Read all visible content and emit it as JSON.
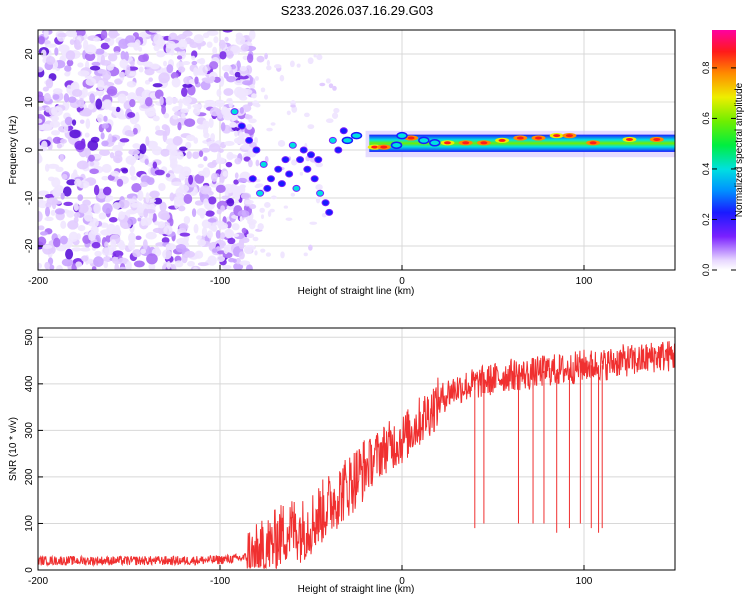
{
  "title": "S233.2026.037.16.29.G03",
  "colors": {
    "snr_line": "#f03030",
    "frame": "#000000",
    "grid": "#d8d8d8",
    "noise_purple": "#6a22e6"
  },
  "chart_data": [
    {
      "type": "heatmap",
      "name": "spectrogram",
      "title": "S233.2026.037.16.29.G03",
      "xlabel": "Height of straight line (km)",
      "ylabel": "Frequency (Hz)",
      "xlim": [
        -200,
        150
      ],
      "ylim": [
        -25,
        25
      ],
      "xticks": [
        -200,
        -100,
        0,
        100
      ],
      "yticks": [
        -20,
        -10,
        0,
        10,
        20
      ],
      "colorbar": {
        "label": "Normalized spectral amplitude",
        "range": [
          0,
          0.95
        ],
        "ticks": [
          0.0,
          0.2,
          0.4,
          0.6,
          0.8
        ],
        "colormap": "rainbow (white-purple-blue-cyan-green-yellow-red-magenta)"
      },
      "features": [
        {
          "name": "noise region",
          "x_range": [
            -200,
            -90
          ],
          "freq_range": [
            -25,
            25
          ],
          "amplitude": 0.05
        },
        {
          "name": "main signal",
          "x_range": [
            -20,
            150
          ],
          "center_freq_hz": 1.5,
          "amplitude": 0.6
        },
        {
          "name": "fading branch",
          "x_range": [
            -95,
            -40
          ],
          "freq_range": [
            -14,
            8
          ],
          "amplitude": 0.3
        }
      ]
    },
    {
      "type": "line",
      "name": "snr",
      "xlabel": "Height of straight line (km)",
      "ylabel": "SNR (10 * v/v)",
      "xlim": [
        -200,
        150
      ],
      "ylim": [
        0,
        520
      ],
      "xticks": [
        -200,
        -100,
        0,
        100
      ],
      "yticks": [
        0,
        100,
        200,
        300,
        400,
        500
      ],
      "series": [
        {
          "name": "SNR",
          "x": [
            -200,
            -180,
            -160,
            -140,
            -120,
            -100,
            -90,
            -80,
            -75,
            -70,
            -65,
            -60,
            -55,
            -50,
            -45,
            -40,
            -35,
            -30,
            -25,
            -20,
            -15,
            -10,
            -5,
            0,
            5,
            10,
            15,
            20,
            25,
            30,
            40,
            50,
            60,
            70,
            80,
            90,
            100,
            110,
            120,
            130,
            140,
            150
          ],
          "y": [
            20,
            20,
            20,
            20,
            20,
            22,
            25,
            30,
            45,
            60,
            80,
            90,
            85,
            100,
            120,
            140,
            160,
            180,
            200,
            220,
            240,
            260,
            270,
            280,
            300,
            320,
            340,
            360,
            380,
            390,
            400,
            410,
            420,
            420,
            430,
            430,
            440,
            440,
            450,
            450,
            460,
            460
          ]
        }
      ],
      "dropouts": [
        {
          "x": 40,
          "y": 90
        },
        {
          "x": 45,
          "y": 100
        },
        {
          "x": 64,
          "y": 100
        },
        {
          "x": 72,
          "y": 100
        },
        {
          "x": 78,
          "y": 100
        },
        {
          "x": 85,
          "y": 80
        },
        {
          "x": 92,
          "y": 90
        },
        {
          "x": 98,
          "y": 100
        },
        {
          "x": 104,
          "y": 90
        },
        {
          "x": 108,
          "y": 80
        },
        {
          "x": 110,
          "y": 90
        }
      ]
    }
  ]
}
